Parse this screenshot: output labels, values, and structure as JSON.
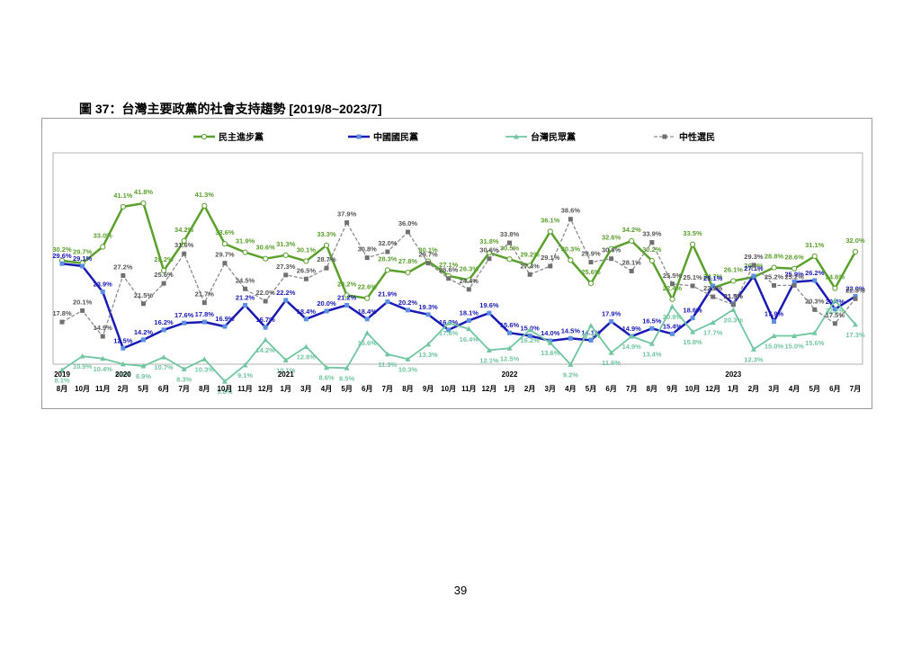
{
  "figure_title": "圖 37：台灣主要政黨的社會支持趨勢 [2019/8~2023/7]",
  "page_number": "39",
  "chart_data": {
    "type": "line",
    "year_labels": [
      "2019",
      "2020",
      "2021",
      "2022",
      "2023"
    ],
    "year_at_index": [
      0,
      3,
      11,
      22,
      33
    ],
    "categories": [
      "8月",
      "10月",
      "11月",
      "2月",
      "5月",
      "6月",
      "7月",
      "8月",
      "10月",
      "11月",
      "12月",
      "1月",
      "3月",
      "4月",
      "5月",
      "6月",
      "7月",
      "8月",
      "9月",
      "10月",
      "11月",
      "12月",
      "1月",
      "2月",
      "3月",
      "4月",
      "5月",
      "6月",
      "7月",
      "8月",
      "9月",
      "10月",
      "12月",
      "1月",
      "2月",
      "3月",
      "4月",
      "5月",
      "6月",
      "7月"
    ],
    "ylim": [
      0,
      50
    ],
    "grid": false,
    "legend_position": "top",
    "series": [
      {
        "name": "民主進步黨",
        "color": "#5aa02c",
        "marker": "circle",
        "width": 2.5,
        "values": [
          30.2,
          29.7,
          33.0,
          41.1,
          41.8,
          28.2,
          34.2,
          41.3,
          33.6,
          31.9,
          30.6,
          31.3,
          30.1,
          33.3,
          23.2,
          22.6,
          28.3,
          27.8,
          30.1,
          27.1,
          26.3,
          31.8,
          30.5,
          29.2,
          36.1,
          30.3,
          25.6,
          32.6,
          34.2,
          30.2,
          22.4,
          33.5,
          24.7,
          26.1,
          26.9,
          28.8,
          28.6,
          31.1,
          24.6,
          32.0
        ]
      },
      {
        "name": "中國國民黨",
        "color": "#1a1ab4",
        "marker": "square",
        "width": 2.5,
        "values": [
          29.6,
          29.1,
          23.9,
          12.5,
          14.2,
          16.2,
          17.6,
          17.8,
          16.9,
          21.2,
          16.7,
          22.2,
          18.4,
          20.0,
          21.2,
          18.4,
          21.9,
          20.2,
          19.3,
          16.2,
          18.1,
          19.6,
          15.6,
          15.0,
          14.0,
          14.5,
          14.1,
          17.9,
          14.9,
          16.5,
          15.4,
          18.6,
          25.1,
          21.5,
          27.1,
          17.9,
          25.9,
          26.2,
          20.4,
          23.0
        ]
      },
      {
        "name": "台灣民眾黨",
        "color": "#70c6a0",
        "marker": "triangle",
        "width": 1.8,
        "values": [
          8.1,
          10.9,
          10.4,
          9.3,
          8.9,
          10.7,
          8.3,
          10.3,
          5.8,
          9.1,
          14.2,
          10.1,
          12.8,
          8.6,
          8.5,
          15.6,
          11.3,
          10.3,
          13.3,
          17.6,
          16.4,
          12.1,
          12.5,
          16.2,
          13.6,
          9.2,
          17.1,
          11.6,
          14.9,
          13.4,
          20.9,
          15.8,
          17.7,
          20.3,
          12.3,
          15.0,
          15.0,
          15.6,
          22.2,
          17.3
        ]
      },
      {
        "name": "中性選民",
        "color": "#8c8c8c",
        "marker": "square",
        "width": 1.3,
        "dashed": true,
        "values": [
          17.8,
          20.1,
          14.9,
          27.2,
          21.5,
          25.6,
          31.6,
          21.7,
          29.7,
          24.5,
          22.0,
          27.3,
          26.5,
          28.7,
          37.9,
          30.8,
          32.0,
          36.0,
          29.7,
          26.6,
          24.4,
          30.6,
          33.8,
          27.4,
          29.1,
          38.6,
          29.9,
          30.6,
          28.1,
          33.9,
          25.5,
          25.1,
          22.9,
          21.3,
          29.3,
          25.2,
          25.2,
          20.3,
          17.5,
          22.5
        ]
      }
    ]
  }
}
